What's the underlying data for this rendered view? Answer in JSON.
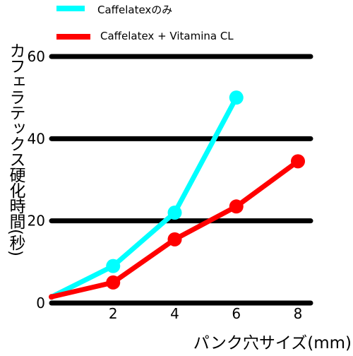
{
  "chart_data": {
    "type": "line",
    "title": "",
    "xlabel": "パンク穴サイズ(mm)",
    "ylabel": "カフェラテックス硬化時間(秒)",
    "xlim": [
      0,
      8
    ],
    "ylim": [
      0,
      60
    ],
    "x_ticks": [
      "2",
      "4",
      "6",
      "8"
    ],
    "y_ticks": [
      "0",
      "20",
      "40",
      "60"
    ],
    "grid": "horizontal",
    "legend_position": "top-left",
    "series": [
      {
        "name": "Caffelatexのみ",
        "color": "#00ffff",
        "x": [
          0,
          2,
          4,
          6
        ],
        "y": [
          1.5,
          9,
          22,
          50
        ]
      },
      {
        "name": "Caffelatex + Vitamina CL",
        "color": "#ff0000",
        "x": [
          0,
          2,
          4,
          6,
          8
        ],
        "y": [
          1.5,
          5,
          15.5,
          23.5,
          34.5
        ]
      }
    ]
  }
}
